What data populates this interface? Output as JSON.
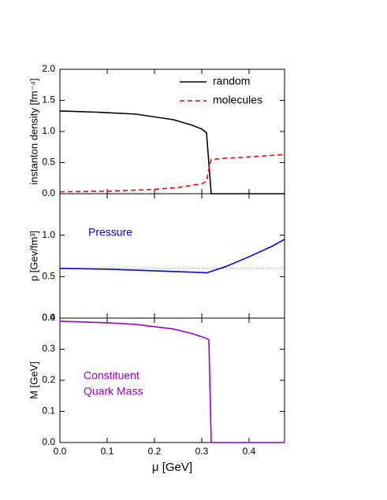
{
  "chart_data": [
    {
      "type": "line",
      "ylabel": "instanton density [fm⁻⁴]",
      "xlim": [
        0,
        0.475
      ],
      "ylim": [
        0,
        2
      ],
      "yticks": [
        {
          "value": 0,
          "label": "0.0"
        },
        {
          "value": 0.5,
          "label": "0.5"
        },
        {
          "value": 1,
          "label": "1.0"
        },
        {
          "value": 1.5,
          "label": "1.5"
        },
        {
          "value": 2,
          "label": "2.0"
        }
      ],
      "legend": "top-right",
      "series": [
        {
          "name": "random",
          "color": "#000000",
          "style": "solid",
          "x": [
            0,
            0.08,
            0.16,
            0.24,
            0.28,
            0.3,
            0.31,
            0.32,
            0.475
          ],
          "values": [
            1.33,
            1.31,
            1.28,
            1.19,
            1.1,
            1.04,
            0.98,
            0,
            0
          ]
        },
        {
          "name": "molecules",
          "color": "#ff0000",
          "style": "dashed",
          "x": [
            0,
            0.1,
            0.2,
            0.25,
            0.3,
            0.31,
            0.315,
            0.32,
            0.35,
            0.4,
            0.475
          ],
          "values": [
            0.03,
            0.04,
            0.07,
            0.1,
            0.16,
            0.2,
            0.4,
            0.55,
            0.57,
            0.59,
            0.63
          ]
        }
      ]
    },
    {
      "type": "line",
      "ylabel": "p [Gev/fm³]",
      "annotation": [
        "Pressure"
      ],
      "annotation_color": "#0000ff",
      "xlim": [
        0,
        0.475
      ],
      "ylim": [
        0,
        1.5
      ],
      "yticks": [
        {
          "value": 0,
          "label": "0.0"
        },
        {
          "value": 0.5,
          "label": "0.5"
        },
        {
          "value": 1,
          "label": "1.0"
        }
      ],
      "hline": 0.6,
      "series": [
        {
          "color": "#0000ff",
          "style": "solid",
          "x": [
            0,
            0.1,
            0.2,
            0.3,
            0.31,
            0.35,
            0.4,
            0.45,
            0.475
          ],
          "values": [
            0.6,
            0.59,
            0.57,
            0.55,
            0.545,
            0.62,
            0.74,
            0.87,
            0.95
          ]
        }
      ]
    },
    {
      "type": "line",
      "ylabel": "M [GeV]",
      "xlabel": "μ [GeV]",
      "annotation": [
        "Constituent",
        "Quark Mass"
      ],
      "annotation_color": "#9900cc",
      "xlim": [
        0,
        0.475
      ],
      "ylim": [
        0,
        0.4
      ],
      "xticks": [
        {
          "value": 0,
          "label": "0.0"
        },
        0.1,
        0.2,
        0.3,
        0.4
      ],
      "yticks": [
        {
          "value": 0,
          "label": "0.0"
        },
        0.1,
        0.2,
        0.3,
        0.4
      ],
      "series": [
        {
          "color": "#9900cc",
          "style": "solid",
          "x": [
            0,
            0.1,
            0.16,
            0.24,
            0.28,
            0.31,
            0.315,
            0.32,
            0.475
          ],
          "values": [
            0.39,
            0.385,
            0.38,
            0.365,
            0.35,
            0.335,
            0.33,
            0,
            0
          ]
        }
      ]
    }
  ]
}
